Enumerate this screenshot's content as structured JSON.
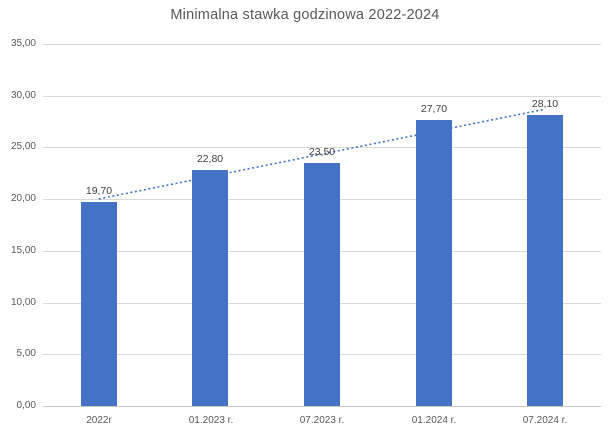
{
  "chart_data": {
    "type": "bar",
    "title": "Minimalna stawka godzinowa 2022-2024",
    "categories": [
      "2022r",
      "01.2023 r.",
      "07.2023 r.",
      "01.2024 r.",
      "07.2024 r."
    ],
    "values": [
      19.7,
      22.8,
      23.5,
      27.7,
      28.1
    ],
    "data_labels": [
      "19,70",
      "22,80",
      "23,50",
      "27,70",
      "28,10"
    ],
    "xlabel": "",
    "ylabel": "",
    "ylim": [
      0,
      35
    ],
    "y_tick_step": 5,
    "y_tick_labels": [
      "0,00",
      "5,00",
      "10,00",
      "15,00",
      "20,00",
      "25,00",
      "30,00",
      "35,00"
    ],
    "grid": true,
    "legend": false,
    "trendline": {
      "type": "linear",
      "style": "dotted"
    },
    "colors": {
      "bar": "#4472C4",
      "trendline": "#4472C4",
      "gridline": "#D9D9D9",
      "axis_line": "#C8C6C6",
      "axis_label": "#595959",
      "data_label": "#404040",
      "title": "#595959",
      "background": "#FFFFFF"
    }
  }
}
